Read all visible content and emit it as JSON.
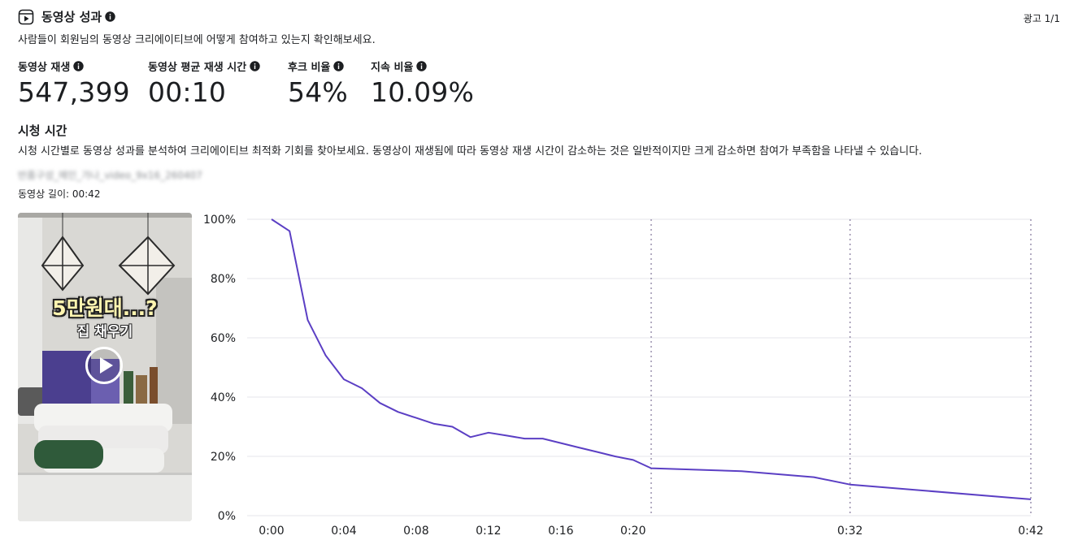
{
  "header": {
    "title": "동영상 성과",
    "description": "사람들이 회원님의 동영상 크리에이티브에 어떻게 참여하고 있는지 확인해보세요.",
    "ad_counter": "광고 1/1"
  },
  "metrics": [
    {
      "label": "동영상 재생",
      "value": "547,399"
    },
    {
      "label": "동영상 평균 재생 시간",
      "value": "00:10"
    },
    {
      "label": "후크 비율",
      "value": "54%"
    },
    {
      "label": "지속 비율",
      "value": "10.09%"
    }
  ],
  "watch_time": {
    "title": "시청 시간",
    "description": "시청 시간별로 동영상 성과를 분석하여 크리에이티브 최적화 기회를 찾아보세요. 동영상이 재생됨에 따라 동영상 재생 시간이 감소하는 것은 일반적이지만 크게 감소하면 참여가 부족함을 나타낼 수 있습니다.",
    "video_name": "반품구성_메인_가나_video_9x16_260407",
    "video_length": "동영상 길이: 00:42"
  },
  "thumbnail": {
    "caption_big": "5만원대...?",
    "caption_small": "집 채우기"
  },
  "colors": {
    "line": "#5b3fc4",
    "grid": "#e4e6eb",
    "marker": "#8a7fa0"
  },
  "chart_data": {
    "type": "line",
    "title": "",
    "xlabel": "",
    "ylabel": "",
    "xlim": [
      0,
      42
    ],
    "ylim": [
      0,
      100
    ],
    "x_ticks": [
      {
        "value": 0,
        "label": "0:00"
      },
      {
        "value": 4,
        "label": "0:04"
      },
      {
        "value": 8,
        "label": "0:08"
      },
      {
        "value": 12,
        "label": "0:12"
      },
      {
        "value": 16,
        "label": "0:16"
      },
      {
        "value": 20,
        "label": "0:20"
      },
      {
        "value": 32,
        "label": "0:32"
      },
      {
        "value": 42,
        "label": "0:42"
      }
    ],
    "y_ticks": [
      {
        "value": 0,
        "label": "0%"
      },
      {
        "value": 20,
        "label": "20%"
      },
      {
        "value": 40,
        "label": "40%"
      },
      {
        "value": 60,
        "label": "60%"
      },
      {
        "value": 80,
        "label": "80%"
      },
      {
        "value": 100,
        "label": "100%"
      }
    ],
    "markers_x": [
      21,
      32,
      42
    ],
    "grid": true,
    "series": [
      {
        "x": [
          0,
          1,
          2,
          3,
          4,
          5,
          6,
          7,
          8,
          9,
          10,
          11,
          12,
          13,
          14,
          15,
          16,
          17,
          18,
          19,
          20,
          21,
          26,
          30,
          32,
          36,
          41,
          42
        ],
        "values": [
          100,
          96,
          66,
          54,
          46,
          43,
          38,
          35,
          33,
          31,
          30,
          26.5,
          28,
          27,
          26,
          26,
          24.5,
          23,
          21.5,
          20,
          18.8,
          16,
          15,
          13,
          10.5,
          8.5,
          6,
          5.5
        ]
      }
    ]
  }
}
